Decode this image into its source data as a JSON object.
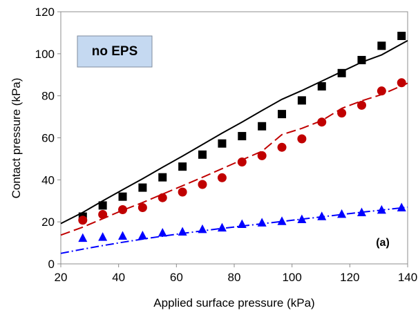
{
  "chart_data": {
    "type": "scatter",
    "title": "",
    "xlabel": "Applied surface pressure (kPa)",
    "ylabel": "Contact pressure (kPa)",
    "xlim": [
      20,
      140
    ],
    "ylim": [
      0,
      120
    ],
    "xticks": [
      20,
      40,
      60,
      80,
      100,
      120,
      140
    ],
    "yticks": [
      0,
      20,
      40,
      60,
      80,
      100,
      120
    ],
    "grid": false,
    "annotations": {
      "callout": "no EPS",
      "panel": "(a)"
    },
    "colors": {
      "black": "#000000",
      "red": "#c00000",
      "blue": "#0000ff",
      "callout_fill": "#c5d9f1"
    },
    "x": [
      27.6,
      34.5,
      41.4,
      48.3,
      55.2,
      62.1,
      69,
      75.8,
      82.7,
      89.6,
      96.5,
      103.4,
      110.3,
      117.2,
      124.1,
      131,
      137.9
    ],
    "series": [
      {
        "marker": "square",
        "color": "#000000",
        "values": [
          22.5,
          27.8,
          32,
          36.3,
          41.2,
          46.3,
          52,
          57.3,
          60.8,
          65.5,
          71.3,
          77.8,
          84.5,
          90.8,
          97,
          103.8,
          108.5
        ]
      },
      {
        "marker": "circle",
        "color": "#c00000",
        "values": [
          20.8,
          23.5,
          25.8,
          26.8,
          31.5,
          34.2,
          37.8,
          41,
          48.5,
          51.5,
          55.5,
          59.5,
          67.5,
          71.8,
          75.5,
          82.3,
          86.2
        ]
      },
      {
        "marker": "triangle",
        "color": "#0000ff",
        "values": [
          12.3,
          12.8,
          13.3,
          13.5,
          14.8,
          15.3,
          16.5,
          17.2,
          18.9,
          19.6,
          20.3,
          21.2,
          22.6,
          23.7,
          24.5,
          25.7,
          26.8
        ]
      }
    ],
    "curves": [
      {
        "style": "solid",
        "color": "#000000",
        "x": [
          20,
          27.6,
          34.5,
          41.4,
          48.3,
          55.2,
          62.1,
          69,
          75.8,
          82.7,
          89.6,
          96.5,
          103.4,
          110.3,
          117.2,
          124.1,
          131,
          140
        ],
        "y": [
          19.2,
          24.5,
          30,
          35.3,
          40.5,
          46,
          51.3,
          56.8,
          62.2,
          67.5,
          73,
          78.3,
          82.5,
          87,
          91.5,
          96,
          99.5,
          106.3
        ]
      },
      {
        "style": "dashed",
        "color": "#c00000",
        "x": [
          20,
          27.6,
          34.5,
          41.4,
          48.3,
          55.2,
          62.1,
          69,
          75.8,
          82.7,
          89.6,
          96.5,
          103.4,
          110.3,
          117.2,
          124.1,
          131,
          140
        ],
        "y": [
          13.7,
          17.5,
          21.5,
          25.5,
          29.2,
          33.2,
          37.2,
          41.2,
          45.3,
          49.5,
          53.6,
          61.5,
          64.5,
          68.2,
          74,
          77.6,
          80.6,
          86
        ]
      },
      {
        "style": "dashdot",
        "color": "#0000ff",
        "x": [
          20,
          27.6,
          34.5,
          41.4,
          48.3,
          55.2,
          62.1,
          69,
          75.8,
          82.7,
          89.6,
          96.5,
          103.4,
          110.3,
          117.2,
          124.1,
          131,
          140
        ],
        "y": [
          5,
          7,
          8.7,
          10.3,
          11.8,
          13.2,
          14.5,
          15.7,
          16.9,
          18,
          19.1,
          20.2,
          21.3,
          22.4,
          23.5,
          24.6,
          25.6,
          27
        ]
      }
    ]
  }
}
